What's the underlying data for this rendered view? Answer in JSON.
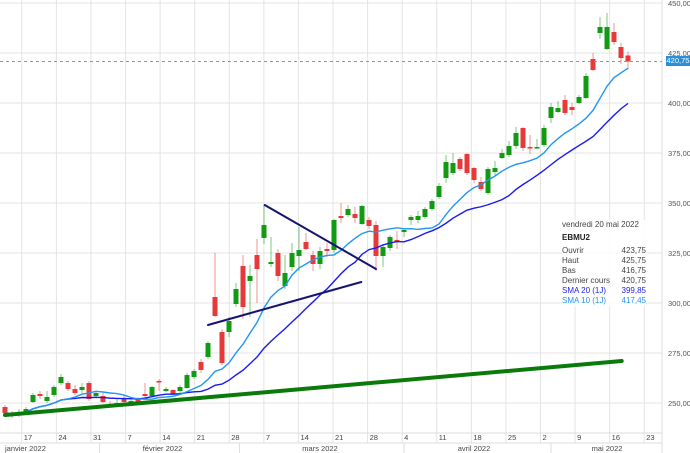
{
  "chart_data": {
    "type": "candlestick",
    "symbol": "EBMU2",
    "ylim": [
      240,
      450
    ],
    "y_ticks": [
      "250,00",
      "275,00",
      "300,00",
      "325,00",
      "350,00",
      "375,00",
      "400,00",
      "425,00",
      "450,00"
    ],
    "y_tick_values": [
      250,
      275,
      300,
      325,
      350,
      375,
      400,
      425,
      450
    ],
    "x_ticks": [
      "17",
      "24",
      "31",
      "7",
      "14",
      "21",
      "28",
      "7",
      "14",
      "21",
      "28",
      "4",
      "11",
      "18",
      "25",
      "2",
      "9",
      "16",
      "23"
    ],
    "months": [
      "janvier 2022",
      "février 2022",
      "mars 2022",
      "avril 2022",
      "mai 2022"
    ],
    "grid": true,
    "last_price": 420.75,
    "last_price_label": "420,75",
    "colors": {
      "up": "#129a12",
      "down": "#e63a3a",
      "sma20": "#1a1aee",
      "sma10": "#2196f3",
      "trend_green": "#0a7a0a",
      "trend_navy": "#14146e",
      "last_price_line": "#e57373",
      "price_tag": "#2a8fd8"
    },
    "candles_ohlc": [
      [
        248,
        249,
        243,
        245
      ],
      [
        245,
        246,
        242.5,
        244
      ],
      [
        244.5,
        247,
        243,
        245.5
      ],
      [
        245,
        248,
        244,
        247
      ],
      [
        250.5,
        255,
        250,
        254
      ],
      [
        254.5,
        256,
        252,
        253.5
      ],
      [
        251,
        256,
        250,
        253
      ],
      [
        254,
        259,
        253,
        258
      ],
      [
        260,
        264.5,
        259,
        263
      ],
      [
        260,
        261,
        256,
        257
      ],
      [
        257,
        259,
        254,
        255
      ],
      [
        256.5,
        260,
        255,
        258
      ],
      [
        260,
        261,
        251,
        252
      ],
      [
        253.5,
        256,
        253,
        255
      ],
      [
        253.5,
        255,
        250,
        250.5
      ],
      [
        249.5,
        251,
        248,
        248.5
      ],
      [
        249.5,
        252,
        249,
        250
      ],
      [
        252.5,
        254,
        250,
        250.5
      ],
      [
        249.5,
        252,
        249,
        251
      ],
      [
        252,
        253,
        249.5,
        250
      ],
      [
        254.5,
        260,
        253,
        253.5
      ],
      [
        253.5,
        258.5,
        253,
        258
      ],
      [
        261,
        262,
        256,
        260.5
      ],
      [
        256,
        258,
        255.5,
        257
      ],
      [
        256.5,
        257,
        254,
        254.5
      ],
      [
        256,
        259,
        255,
        258
      ],
      [
        257.5,
        265,
        257,
        264
      ],
      [
        263,
        267,
        262,
        266
      ],
      [
        270.5,
        272,
        265,
        266.5
      ],
      [
        273,
        281,
        272,
        280
      ],
      [
        303,
        325,
        293,
        293.5
      ],
      [
        285.5,
        287,
        269,
        270
      ],
      [
        285.5,
        293,
        283,
        291
      ],
      [
        299.5,
        310,
        298,
        307
      ],
      [
        318.5,
        324,
        292,
        298
      ],
      [
        311,
        319,
        293,
        313.5
      ],
      [
        324,
        332,
        300,
        317
      ],
      [
        332.5,
        349,
        329.5,
        339
      ],
      [
        319.5,
        333,
        318,
        320.5
      ],
      [
        325,
        327,
        311,
        313.5
      ],
      [
        308.5,
        324,
        307,
        315
      ],
      [
        318,
        330,
        316,
        325
      ],
      [
        323.5,
        338,
        316,
        326.5
      ],
      [
        330.5,
        335,
        326.5,
        327
      ],
      [
        324,
        326,
        316,
        319.5
      ],
      [
        319.5,
        328,
        317,
        326
      ],
      [
        327,
        330,
        323,
        326
      ],
      [
        326.5,
        342,
        325,
        341.5
      ],
      [
        343.5,
        350,
        340,
        342.5
      ],
      [
        344,
        349,
        343,
        347
      ],
      [
        344.5,
        348,
        340,
        342.5
      ],
      [
        339.5,
        349,
        339,
        348.5
      ],
      [
        341.5,
        343,
        337,
        338.5
      ],
      [
        339,
        341,
        316,
        323.5
      ],
      [
        323.5,
        329,
        318,
        328
      ],
      [
        327.5,
        334,
        326,
        333
      ],
      [
        331.5,
        336,
        327,
        331
      ],
      [
        335.5,
        337,
        333,
        336.5
      ],
      [
        341.5,
        344,
        339,
        343
      ],
      [
        341.5,
        346,
        340,
        343.5
      ],
      [
        343,
        348,
        342,
        347
      ],
      [
        347,
        352,
        346,
        351
      ],
      [
        353,
        360,
        352,
        358.5
      ],
      [
        362.5,
        374,
        360,
        370.5
      ],
      [
        365,
        375,
        364,
        370
      ],
      [
        372,
        373,
        366,
        367
      ],
      [
        374.5,
        375,
        364,
        365
      ],
      [
        367.5,
        368,
        360,
        361.5
      ],
      [
        360.5,
        363,
        356,
        357
      ],
      [
        355,
        368,
        354,
        367
      ],
      [
        365.5,
        371,
        364,
        367.5
      ],
      [
        372.5,
        377,
        372,
        375
      ],
      [
        374,
        381,
        373,
        378.5
      ],
      [
        378.5,
        388,
        377,
        385
      ],
      [
        387.5,
        388,
        376,
        377.5
      ],
      [
        378,
        384,
        374.5,
        377.5
      ],
      [
        377.5,
        382,
        377,
        378
      ],
      [
        379,
        389,
        378,
        387.5
      ],
      [
        392.5,
        400,
        390,
        398
      ],
      [
        395.5,
        401,
        395,
        397.5
      ],
      [
        401.5,
        404,
        394,
        395
      ],
      [
        398,
        400,
        394,
        396.5
      ],
      [
        400,
        404,
        399.5,
        403
      ],
      [
        402.5,
        415,
        402,
        413.5
      ],
      [
        422,
        425,
        416,
        416.5
      ],
      [
        435,
        443,
        432,
        438
      ],
      [
        427,
        445,
        426.5,
        438
      ],
      [
        435.5,
        440,
        429,
        430.5
      ],
      [
        428,
        430,
        419.5,
        422.5
      ],
      [
        423.75,
        425.75,
        416.75,
        420.75
      ]
    ],
    "trendlines": [
      {
        "color": "trend_green",
        "from": [
          0,
          244
        ],
        "to": [
          88.1,
          271
        ]
      },
      {
        "color": "trend_navy",
        "from": [
          29,
          289
        ],
        "to": [
          50.9,
          310.5
        ]
      },
      {
        "color": "trend_navy",
        "from": [
          37.1,
          349
        ],
        "to": [
          53,
          317
        ]
      }
    ]
  },
  "tooltip": {
    "date": "vendredi 20 mai 2022",
    "symbol": "EBMU2",
    "rows": [
      {
        "label": "Ouvrir",
        "value": "423,75"
      },
      {
        "label": "Haut",
        "value": "425,75"
      },
      {
        "label": "Bas",
        "value": "416,75"
      },
      {
        "label": "Dernier cours",
        "value": "420,75"
      },
      {
        "label": "SMA 20 (1J)",
        "value": "399,85"
      },
      {
        "label": "SMA 10 (1J)",
        "value": "417,45"
      }
    ]
  }
}
